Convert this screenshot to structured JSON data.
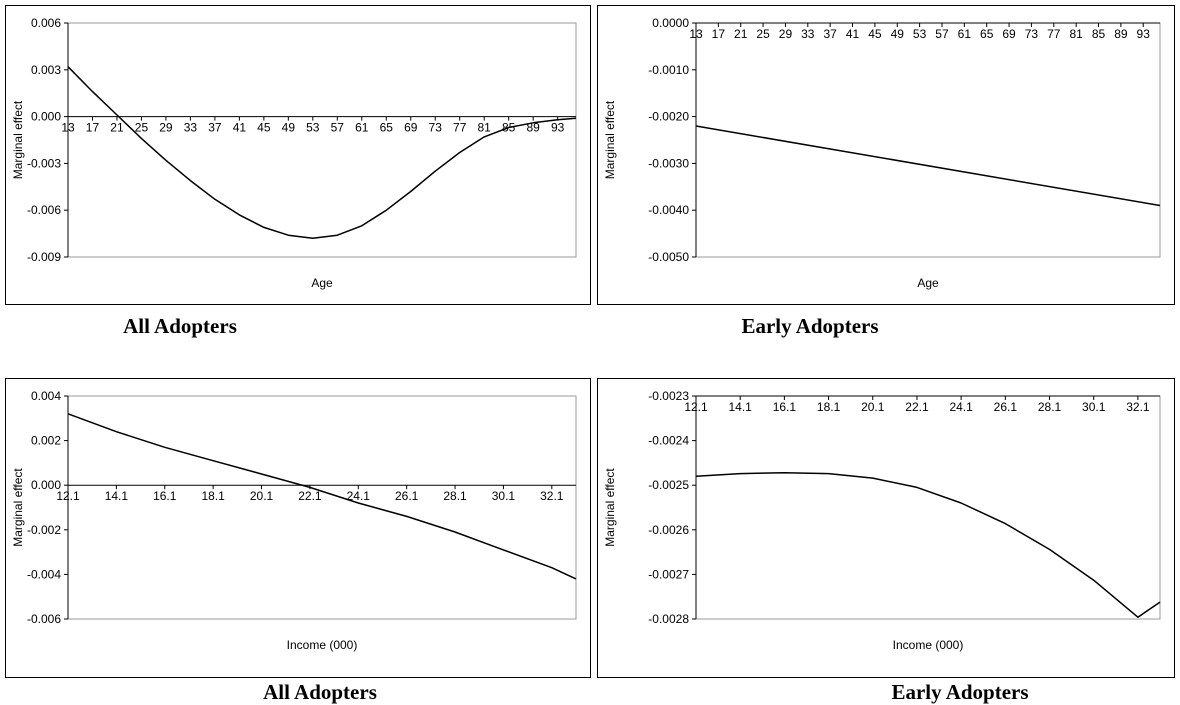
{
  "chart_data": [
    {
      "type": "line",
      "caption": "All Adopters",
      "xlabel": "Age",
      "ylabel": "Marginal effect",
      "ylim": [
        -0.009,
        0.006
      ],
      "yticks": [
        "0.006",
        "0.003",
        "0.000",
        "-0.003",
        "-0.006",
        "-0.009"
      ],
      "xrange": [
        13,
        96
      ],
      "xticks": [
        "13",
        "17",
        "21",
        "25",
        "29",
        "33",
        "37",
        "41",
        "45",
        "49",
        "53",
        "57",
        "61",
        "65",
        "69",
        "73",
        "77",
        "81",
        "85",
        "89",
        "93"
      ],
      "grid": false,
      "legend": "none",
      "x": [
        13,
        17,
        21,
        25,
        29,
        33,
        37,
        41,
        45,
        49,
        53,
        57,
        61,
        65,
        69,
        73,
        77,
        81,
        85,
        89,
        93,
        96
      ],
      "y": [
        0.0032,
        0.0016,
        0.0001,
        -0.0014,
        -0.0028,
        -0.0041,
        -0.0053,
        -0.0063,
        -0.0071,
        -0.0076,
        -0.0078,
        -0.0076,
        -0.007,
        -0.006,
        -0.0048,
        -0.0035,
        -0.0023,
        -0.0013,
        -0.0007,
        -0.0004,
        -0.0002,
        -0.0001
      ]
    },
    {
      "type": "line",
      "caption": "Early Adopters",
      "xlabel": "Age",
      "ylabel": "Marginal effect",
      "ylim": [
        -0.005,
        0.0
      ],
      "yticks": [
        "0.0000",
        "-0.0010",
        "-0.0020",
        "-0.0030",
        "-0.0040",
        "-0.0050"
      ],
      "xrange": [
        13,
        96
      ],
      "xticks": [
        "13",
        "17",
        "21",
        "25",
        "29",
        "33",
        "37",
        "41",
        "45",
        "49",
        "53",
        "57",
        "61",
        "65",
        "69",
        "73",
        "77",
        "81",
        "85",
        "89",
        "93"
      ],
      "grid": false,
      "legend": "none",
      "x": [
        13,
        96
      ],
      "y": [
        -0.0022,
        -0.0039
      ]
    },
    {
      "type": "line",
      "caption": "All Adopters",
      "xlabel": "Income (000)",
      "ylabel": "Marginal effect",
      "ylim": [
        -0.006,
        0.004
      ],
      "yticks": [
        "0.004",
        "0.002",
        "0.000",
        "-0.002",
        "-0.004",
        "-0.006"
      ],
      "xrange": [
        12.1,
        33.1
      ],
      "xticks": [
        "12.1",
        "14.1",
        "16.1",
        "18.1",
        "20.1",
        "22.1",
        "24.1",
        "26.1",
        "28.1",
        "30.1",
        "32.1"
      ],
      "grid": false,
      "legend": "none",
      "x": [
        12.1,
        14.1,
        16.1,
        18.1,
        20.1,
        22.1,
        24.1,
        26.1,
        28.1,
        30.1,
        32.1,
        33.1
      ],
      "y": [
        0.0032,
        0.0024,
        0.0017,
        0.0011,
        0.0005,
        -0.0001,
        -0.0008,
        -0.0014,
        -0.0021,
        -0.0029,
        -0.0037,
        -0.0042
      ]
    },
    {
      "type": "line",
      "caption": "Early Adopters",
      "xlabel": "Income (000)",
      "ylabel": "Marginal effect",
      "ylim": [
        -0.0028,
        -0.0023
      ],
      "yticks": [
        "-0.0023",
        "-0.0024",
        "-0.0025",
        "-0.0026",
        "-0.0027",
        "-0.0028"
      ],
      "xrange": [
        12.1,
        33.1
      ],
      "xticks": [
        "12.1",
        "14.1",
        "16.1",
        "18.1",
        "20.1",
        "22.1",
        "24.1",
        "26.1",
        "28.1",
        "30.1",
        "32.1"
      ],
      "grid": false,
      "legend": "none",
      "x": [
        12.1,
        14.1,
        16.1,
        18.1,
        20.1,
        22.1,
        24.1,
        26.1,
        28.1,
        30.1,
        32.1,
        33.1
      ],
      "y": [
        -0.00248,
        -0.002474,
        -0.002472,
        -0.002474,
        -0.002484,
        -0.002505,
        -0.00254,
        -0.002586,
        -0.002644,
        -0.002713,
        -0.002796,
        -0.002762
      ]
    }
  ]
}
